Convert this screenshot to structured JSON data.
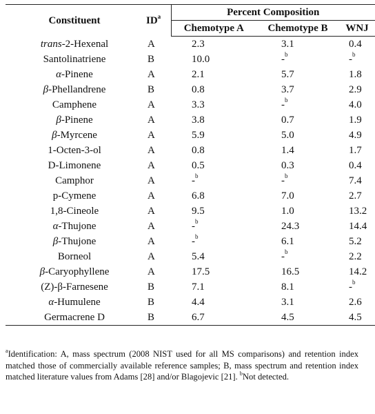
{
  "table": {
    "headers": {
      "constituent": "Constituent",
      "id": "ID",
      "id_sup": "a",
      "percent_composition": "Percent Composition",
      "chemotype_a": "Chemotype A",
      "chemotype_b": "Chemotype B",
      "wnj": "WNJ"
    },
    "not_detected_dash": "-",
    "not_detected_sup": "b",
    "rows": [
      {
        "prefix": "trans",
        "name": "-2-Hexenal",
        "id": "A",
        "a": "2.3",
        "b": "3.1",
        "w": "0.4"
      },
      {
        "prefix": "",
        "name": "Santolinatriene",
        "id": "B",
        "a": "10.0",
        "b": "",
        "w": ""
      },
      {
        "prefix": "α",
        "name": "-Pinene",
        "id": "A",
        "a": "2.1",
        "b": "5.7",
        "w": "1.8"
      },
      {
        "prefix": "β",
        "name": "-Phellandrene",
        "id": "B",
        "a": "0.8",
        "b": "3.7",
        "w": "2.9"
      },
      {
        "prefix": "",
        "name": "Camphene",
        "id": "A",
        "a": "3.3",
        "b": "",
        "w": "4.0"
      },
      {
        "prefix": "β",
        "name": "-Pinene",
        "id": "A",
        "a": "3.8",
        "b": "0.7",
        "w": "1.9"
      },
      {
        "prefix": "β",
        "name": "-Myrcene",
        "id": "A",
        "a": "5.9",
        "b": "5.0",
        "w": "4.9"
      },
      {
        "prefix": "",
        "name": "1-Octen-3-ol",
        "id": "A",
        "a": "0.8",
        "b": "1.4",
        "w": "1.7"
      },
      {
        "prefix": "",
        "name": "D-Limonene",
        "id": "A",
        "a": "0.5",
        "b": "0.3",
        "w": "0.4"
      },
      {
        "prefix": "",
        "name": "Camphor",
        "id": "A",
        "a": "",
        "b": "",
        "w": "7.4"
      },
      {
        "prefix": "",
        "name": "p-Cymene",
        "id": "A",
        "a": "6.8",
        "b": "7.0",
        "w": "2.7"
      },
      {
        "prefix": "",
        "name": "1,8-Cineole",
        "id": "A",
        "a": "9.5",
        "b": "1.0",
        "w": "13.2"
      },
      {
        "prefix": "α",
        "name": "-Thujone",
        "id": "A",
        "a": "",
        "b": "24.3",
        "w": "14.4"
      },
      {
        "prefix": "β",
        "name": "-Thujone",
        "id": "A",
        "a": "",
        "b": "6.1",
        "w": "5.2"
      },
      {
        "prefix": "",
        "name": "Borneol",
        "id": "A",
        "a": "5.4",
        "b": "",
        "w": "2.2"
      },
      {
        "prefix": "β",
        "name": "-Caryophyllene",
        "id": "A",
        "a": "17.5",
        "b": "16.5",
        "w": "14.2"
      },
      {
        "prefix": "",
        "name": "(Z)-β-Farnesene",
        "id": "B",
        "a": "7.1",
        "b": "8.1",
        "w": ""
      },
      {
        "prefix": "α",
        "name": "-Humulene",
        "id": "B",
        "a": "4.4",
        "b": "3.1",
        "w": "2.6"
      },
      {
        "prefix": "",
        "name": "Germacrene D",
        "id": "B",
        "a": "6.7",
        "b": "4.5",
        "w": "4.5"
      }
    ]
  },
  "footnote": {
    "sup_a": "a",
    "text_a": "Identification: A, mass spectrum (2008 NIST used for all MS comparisons) and retention index matched those of commercially available reference samples; B, mass spectrum and retention index matched literature values from Adams [28] and/or Blagojevic [21]. ",
    "sup_b": "b",
    "text_b": "Not detected."
  }
}
